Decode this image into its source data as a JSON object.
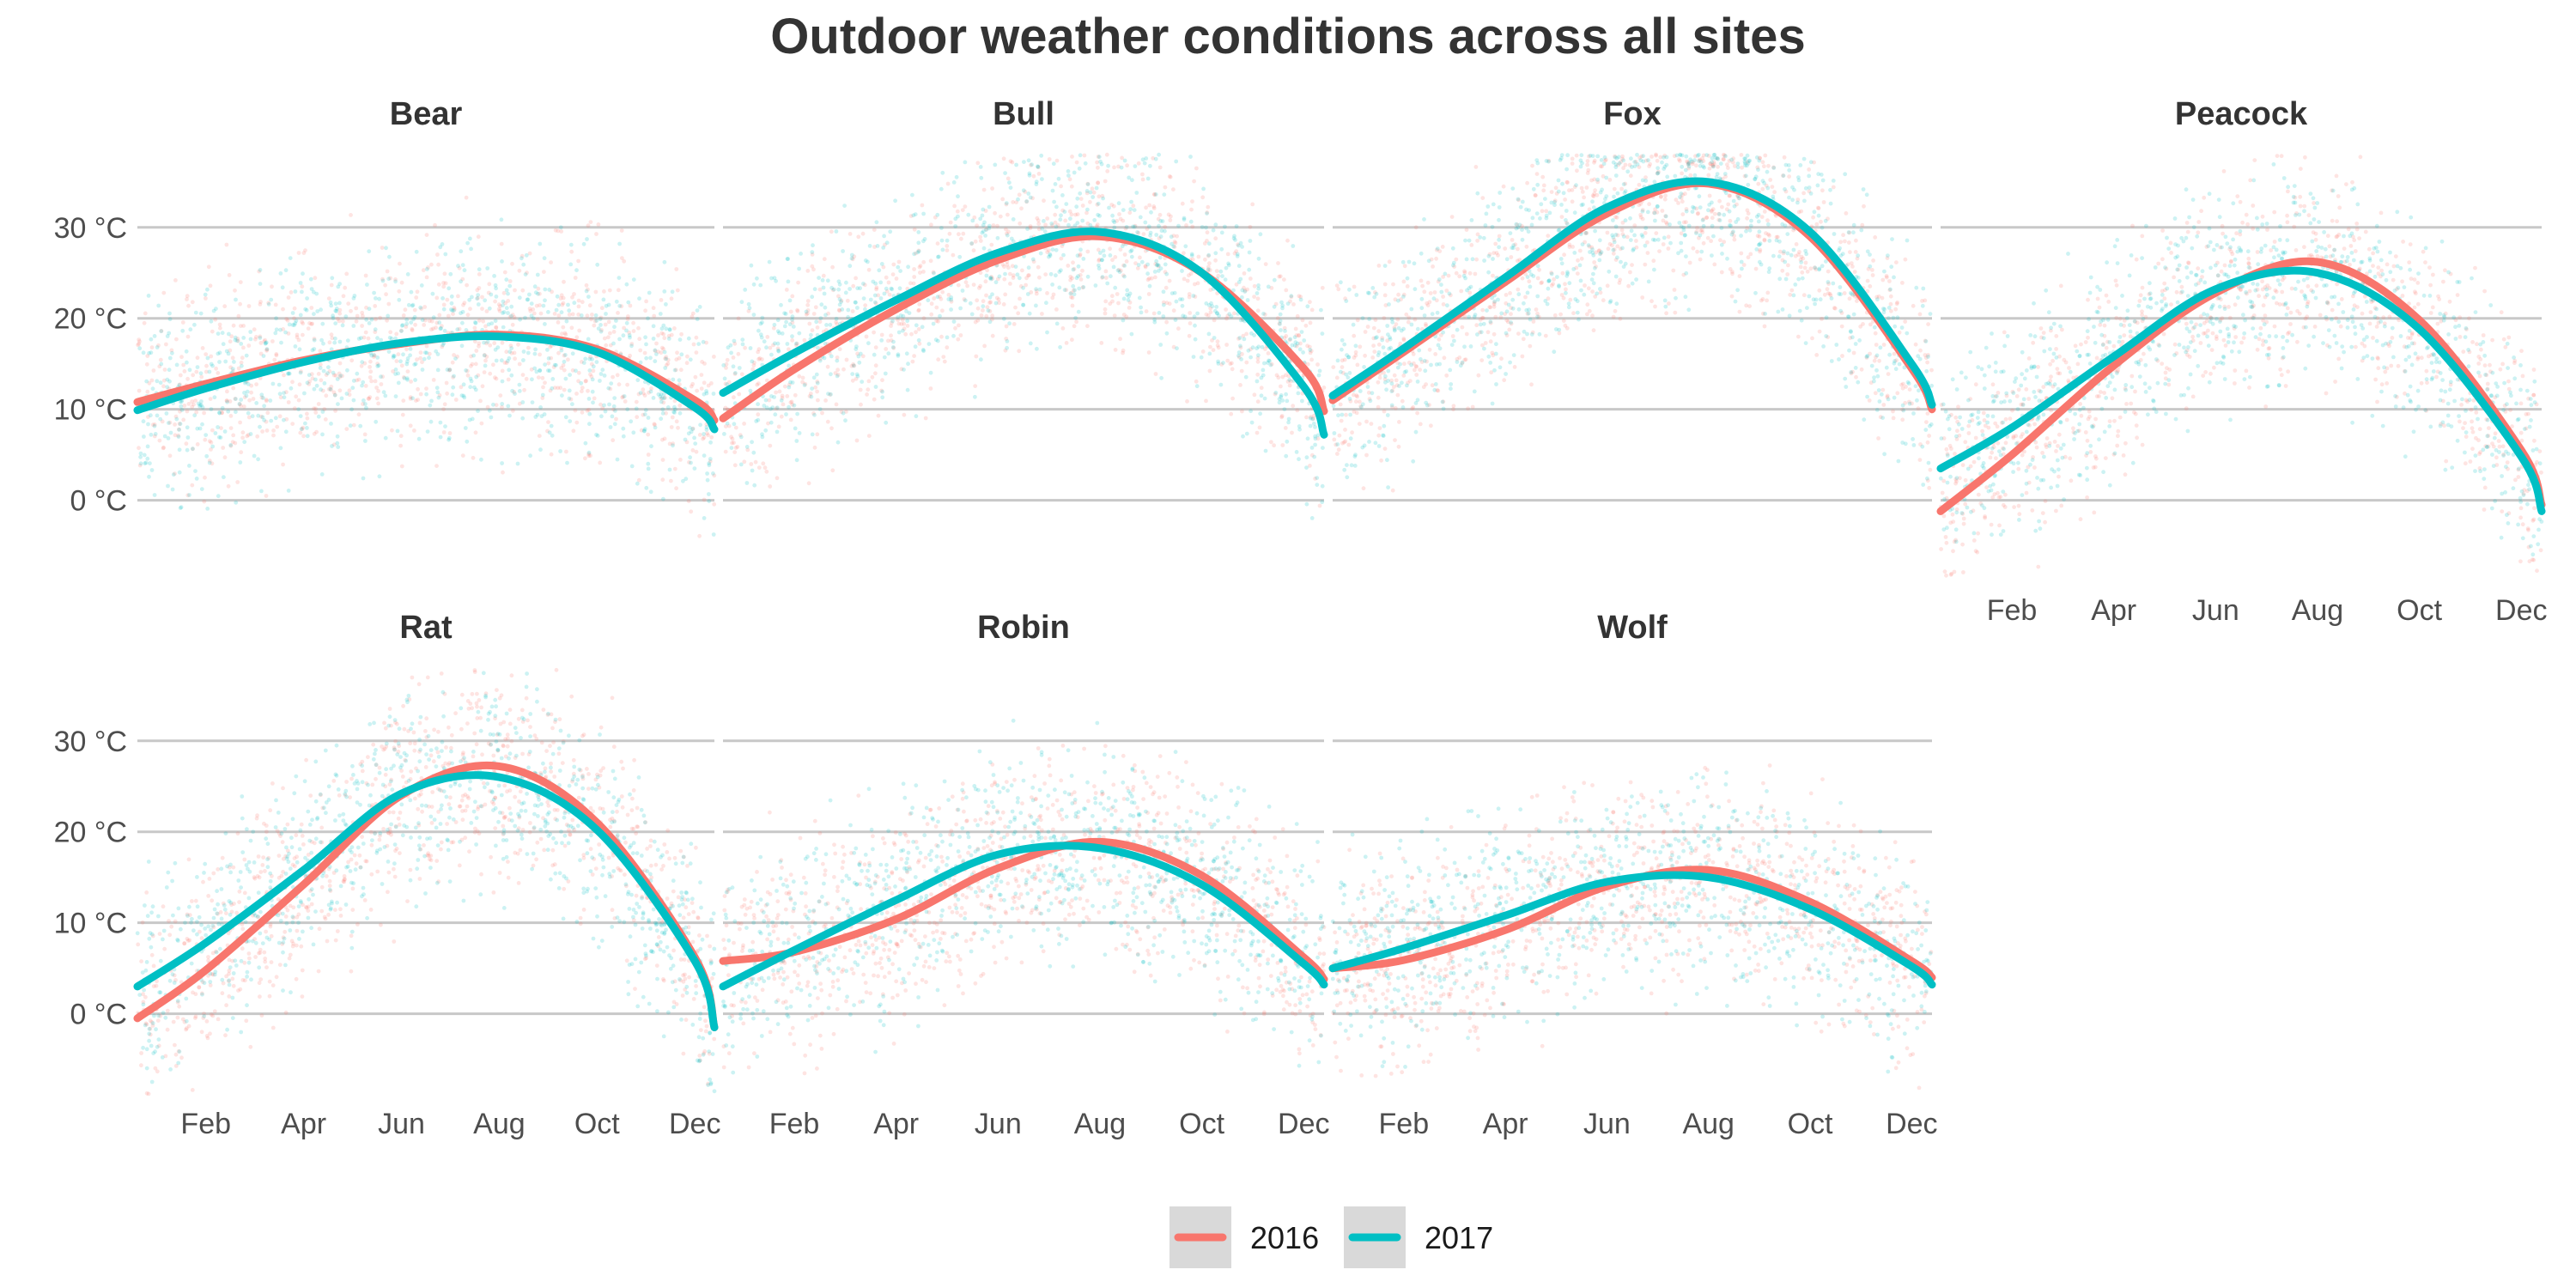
{
  "chart_data": {
    "type": "line",
    "title": "Outdoor weather conditions across all sites",
    "xlabel": "",
    "ylabel": "",
    "y_unit": "°C",
    "ylim": [
      -9,
      38
    ],
    "y_ticks": [
      0,
      10,
      20,
      30
    ],
    "y_tick_labels": [
      "0 °C",
      "10 °C",
      "20 °C",
      "30 °C"
    ],
    "x_domain_months": [
      0.1,
      11.9
    ],
    "x_ticks": [
      1.5,
      3.5,
      5.5,
      7.5,
      9.5,
      11.5
    ],
    "x_tick_labels": [
      "Feb",
      "Apr",
      "Jun",
      "Aug",
      "Oct",
      "Dec"
    ],
    "grid": true,
    "legend_position": "bottom",
    "legend": [
      {
        "label": "2016",
        "color": "#F8766D"
      },
      {
        "label": "2017",
        "color": "#00BFC4"
      }
    ],
    "x_months": [
      0.1,
      1.5,
      3.5,
      5.5,
      7.5,
      9.5,
      11.5,
      11.9
    ],
    "panels": [
      {
        "name": "Bear",
        "show_x_axis": false,
        "series": [
          {
            "name": "2016",
            "values": [
              10.8,
              12.8,
              15.4,
              17.2,
              18.2,
              16.6,
              11.0,
              8.8
            ]
          },
          {
            "name": "2017",
            "values": [
              9.9,
              12.3,
              15.2,
              17.3,
              18.0,
              16.3,
              10.2,
              7.8
            ]
          }
        ]
      },
      {
        "name": "Bull",
        "show_x_axis": false,
        "series": [
          {
            "name": "2016",
            "values": [
              9.0,
              14.4,
              21.0,
              26.4,
              29.0,
              25.0,
              14.5,
              9.8
            ]
          },
          {
            "name": "2017",
            "values": [
              11.8,
              16.2,
              22.0,
              27.2,
              29.5,
              25.0,
              12.5,
              7.2
            ]
          }
        ]
      },
      {
        "name": "Fox",
        "show_x_axis": false,
        "series": [
          {
            "name": "2016",
            "values": [
              11.0,
              16.3,
              24.0,
              31.5,
              34.8,
              29.0,
              14.5,
              10.0
            ]
          },
          {
            "name": "2017",
            "values": [
              11.5,
              16.7,
              24.5,
              32.2,
              35.0,
              29.5,
              15.0,
              10.5
            ]
          }
        ]
      },
      {
        "name": "Peacock",
        "show_x_axis": true,
        "series": [
          {
            "name": "2016",
            "values": [
              -1.2,
              5.0,
              14.8,
              22.8,
              26.2,
              19.8,
              5.5,
              -0.5
            ]
          },
          {
            "name": "2017",
            "values": [
              3.5,
              8.0,
              15.8,
              23.2,
              25.0,
              18.8,
              4.8,
              -1.2
            ]
          }
        ]
      },
      {
        "name": "Rat",
        "show_x_axis": true,
        "series": [
          {
            "name": "2016",
            "values": [
              -0.5,
              4.8,
              14.2,
              24.0,
              27.2,
              21.0,
              6.2,
              -1.5
            ]
          },
          {
            "name": "2017",
            "values": [
              3.0,
              7.8,
              15.8,
              24.2,
              26.0,
              20.2,
              5.8,
              -1.5
            ]
          }
        ]
      },
      {
        "name": "Robin",
        "show_x_axis": true,
        "series": [
          {
            "name": "2016",
            "values": [
              5.8,
              6.8,
              10.4,
              16.0,
              18.9,
              15.2,
              6.2,
              3.8
            ]
          },
          {
            "name": "2017",
            "values": [
              3.0,
              7.0,
              12.5,
              17.5,
              18.2,
              14.2,
              5.5,
              3.2
            ]
          }
        ]
      },
      {
        "name": "Wolf",
        "show_x_axis": true,
        "series": [
          {
            "name": "2016",
            "values": [
              5.0,
              5.9,
              9.2,
              14.0,
              15.8,
              12.3,
              5.8,
              4.0
            ]
          },
          {
            "name": "2017",
            "values": [
              5.0,
              7.2,
              10.8,
              14.5,
              15.0,
              11.5,
              5.2,
              3.2
            ]
          }
        ]
      }
    ]
  }
}
